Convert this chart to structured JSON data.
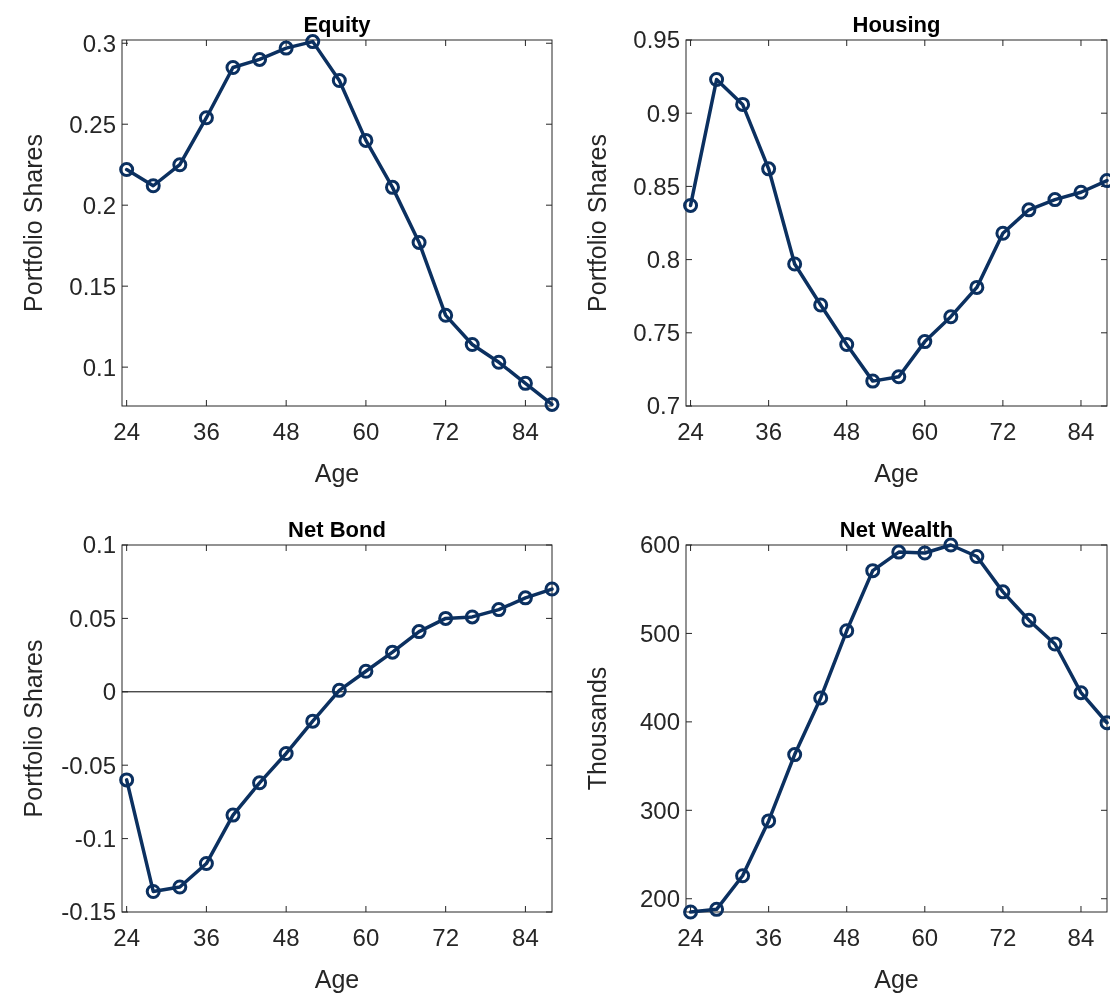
{
  "chart_data": [
    {
      "type": "line",
      "title": "Equity",
      "xlabel": "Age",
      "ylabel": "Portfolio Shares",
      "x": [
        24,
        28,
        32,
        36,
        40,
        44,
        48,
        52,
        56,
        60,
        64,
        68,
        72,
        76,
        80,
        84,
        88
      ],
      "xlim": [
        23.3,
        88
      ],
      "xticks": [
        24,
        36,
        48,
        60,
        72,
        84
      ],
      "ylim": [
        0.076,
        0.302
      ],
      "yticks": [
        0.1,
        0.15,
        0.2,
        0.25,
        0.3
      ],
      "marker": "circle",
      "line_style": "solid",
      "grid": false,
      "series": [
        {
          "color": "#0b3060",
          "values": [
            0.222,
            0.212,
            0.225,
            0.254,
            0.285,
            0.29,
            0.297,
            0.301,
            0.277,
            0.24,
            0.211,
            0.177,
            0.132,
            0.114,
            0.103,
            0.09,
            0.077
          ]
        }
      ]
    },
    {
      "type": "line",
      "title": "Housing",
      "xlabel": "Age",
      "ylabel": "Portfolio Shares",
      "x": [
        24,
        28,
        32,
        36,
        40,
        44,
        48,
        52,
        56,
        60,
        64,
        68,
        72,
        76,
        80,
        84,
        88
      ],
      "xlim": [
        23.3,
        88
      ],
      "xticks": [
        24,
        36,
        48,
        60,
        72,
        84
      ],
      "ylim": [
        0.7,
        0.95
      ],
      "yticks": [
        0.7,
        0.75,
        0.8,
        0.85,
        0.9,
        0.95
      ],
      "marker": "circle",
      "line_style": "solid",
      "grid": false,
      "series": [
        {
          "color": "#0b3060",
          "values": [
            0.837,
            0.923,
            0.906,
            0.862,
            0.797,
            0.769,
            0.742,
            0.717,
            0.72,
            0.744,
            0.761,
            0.781,
            0.818,
            0.834,
            0.841,
            0.846,
            0.854
          ]
        }
      ]
    },
    {
      "type": "line",
      "title": "Net Bond",
      "xlabel": "Age",
      "ylabel": "Portfolio Shares",
      "x": [
        24,
        28,
        32,
        36,
        40,
        44,
        48,
        52,
        56,
        60,
        64,
        68,
        72,
        76,
        80,
        84,
        88
      ],
      "xlim": [
        23.3,
        88
      ],
      "xticks": [
        24,
        36,
        48,
        60,
        72,
        84
      ],
      "ylim": [
        -0.15,
        0.1
      ],
      "yticks": [
        -0.15,
        -0.1,
        -0.05,
        0,
        0.05,
        0.1
      ],
      "marker": "circle",
      "line_style": "solid",
      "grid": false,
      "ref_lines": [
        {
          "axis": "y",
          "value": 0,
          "color": "#000000"
        }
      ],
      "series": [
        {
          "color": "#0b3060",
          "values": [
            -0.06,
            -0.136,
            -0.133,
            -0.117,
            -0.084,
            -0.062,
            -0.042,
            -0.02,
            0.001,
            0.014,
            0.027,
            0.041,
            0.05,
            0.051,
            0.056,
            0.064,
            0.07
          ]
        }
      ]
    },
    {
      "type": "line",
      "title": "Net Wealth",
      "xlabel": "Age",
      "ylabel": "Thousands",
      "x": [
        24,
        28,
        32,
        36,
        40,
        44,
        48,
        52,
        56,
        60,
        64,
        68,
        72,
        76,
        80,
        84,
        88
      ],
      "xlim": [
        23.3,
        88
      ],
      "xticks": [
        24,
        36,
        48,
        60,
        72,
        84
      ],
      "ylim": [
        185,
        600
      ],
      "yticks": [
        200,
        300,
        400,
        500,
        600
      ],
      "marker": "circle",
      "line_style": "solid",
      "grid": false,
      "series": [
        {
          "color": "#0b3060",
          "values": [
            185,
            188,
            226,
            288,
            363,
            427,
            503,
            571,
            592,
            591,
            600,
            587,
            547,
            515,
            488,
            433,
            399
          ]
        }
      ]
    }
  ]
}
